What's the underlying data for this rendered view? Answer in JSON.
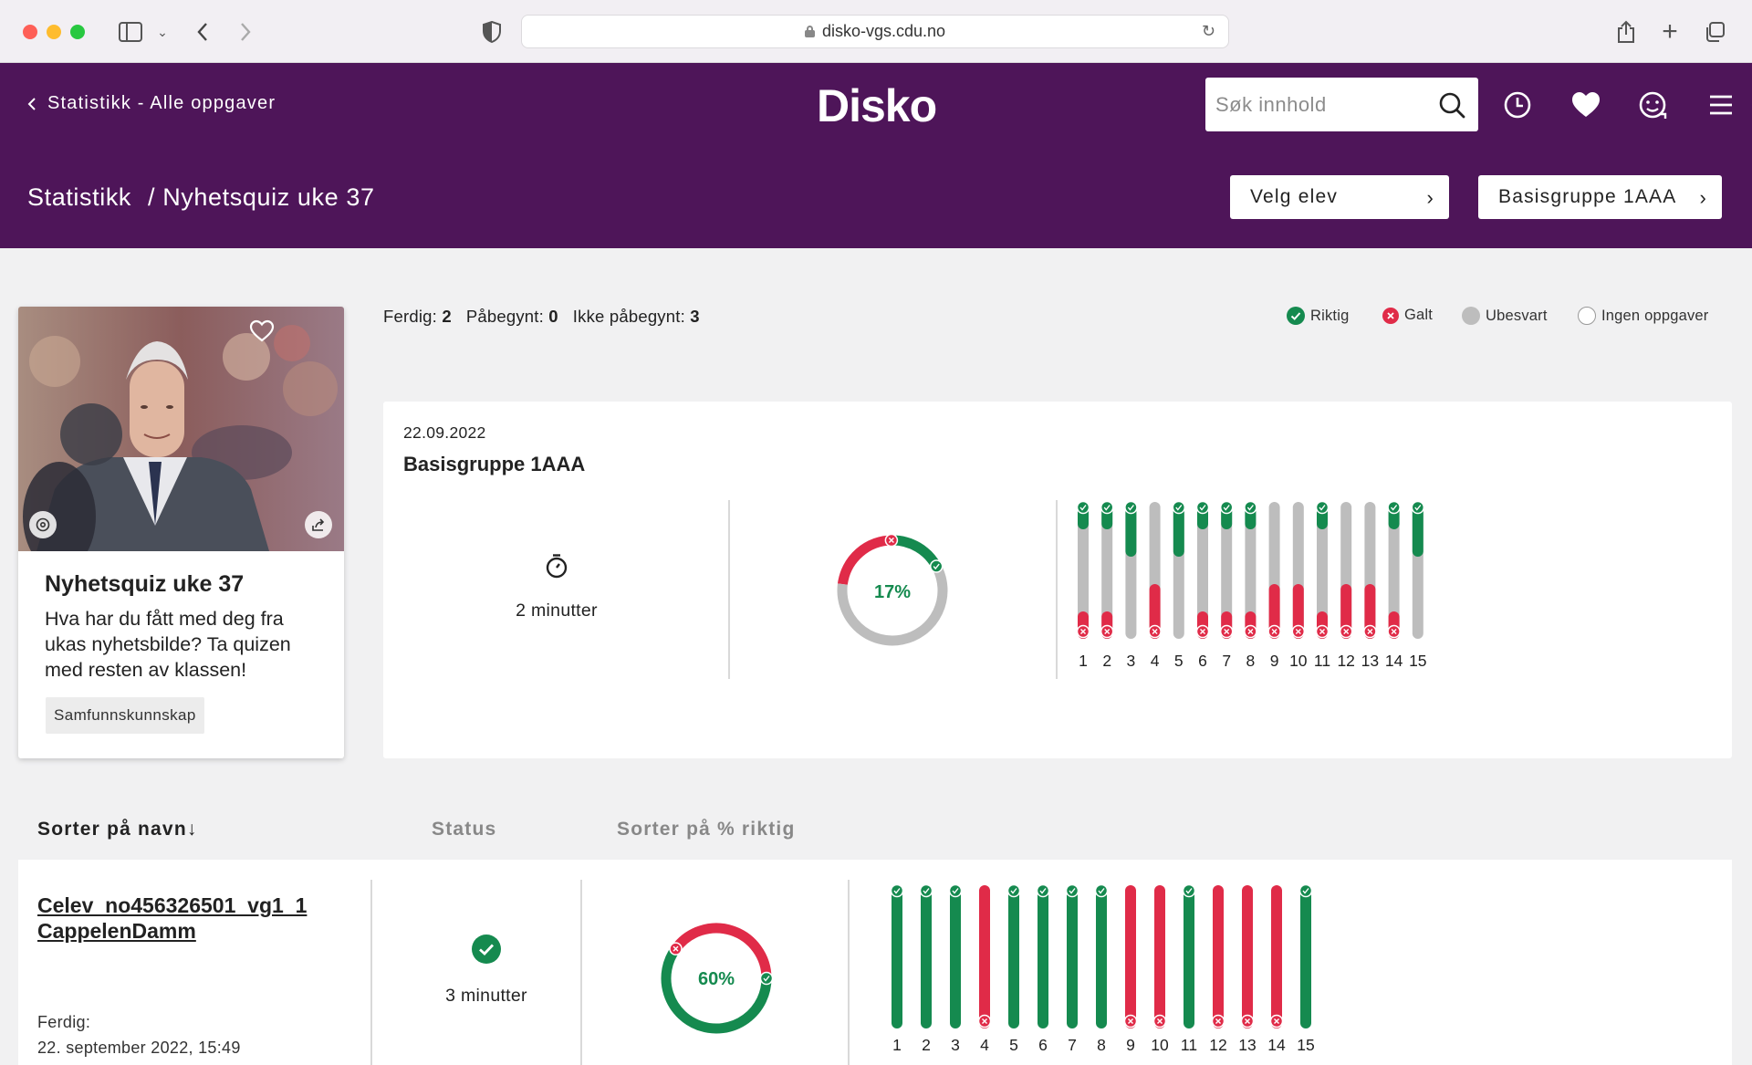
{
  "browser": {
    "url": "disko-vgs.cdu.no"
  },
  "header": {
    "back_label": "Statistikk - Alle oppgaver",
    "logo": "Disko",
    "search_placeholder": "Søk innhold"
  },
  "subheader": {
    "crumb_root": "Statistikk",
    "crumb_current": "/ Nyhetsquiz uke 37",
    "student_button": "Velg elev",
    "group_button": "Basisgruppe 1AAA"
  },
  "card": {
    "title": "Nyhetsquiz uke 37",
    "description": "Hva har du fått med deg fra ukas nyhetsbilde? Ta quizen med resten av klassen!",
    "tag": "Samfunnskunnskap"
  },
  "summary": {
    "done_label": "Ferdig:",
    "done_value": "2",
    "started_label": "Påbegynt:",
    "started_value": "0",
    "not_started_label": "Ikke påbegynt:",
    "not_started_value": "3"
  },
  "legend": {
    "correct": "Riktig",
    "wrong": "Galt",
    "unanswered": "Ubesvart",
    "none": "Ingen oppgaver"
  },
  "colors": {
    "brand": "#4e1559",
    "correct": "#158a4f",
    "wrong": "#e02b48",
    "unanswered": "#bdbdbd"
  },
  "group_panel": {
    "date": "22.09.2022",
    "group": "Basisgruppe 1AAA",
    "time": "2 minutter",
    "percent_label": "17%",
    "percent": {
      "correct": 17,
      "wrong": 23
    },
    "tasks": [
      {
        "n": "1",
        "correct": 0.2,
        "wrong": 0.2
      },
      {
        "n": "2",
        "correct": 0.2,
        "wrong": 0.2
      },
      {
        "n": "3",
        "correct": 0.4,
        "wrong": 0
      },
      {
        "n": "4",
        "correct": 0,
        "wrong": 0.4
      },
      {
        "n": "5",
        "correct": 0.4,
        "wrong": 0
      },
      {
        "n": "6",
        "correct": 0.2,
        "wrong": 0.2
      },
      {
        "n": "7",
        "correct": 0.2,
        "wrong": 0.2
      },
      {
        "n": "8",
        "correct": 0.2,
        "wrong": 0.2
      },
      {
        "n": "9",
        "correct": 0,
        "wrong": 0.4
      },
      {
        "n": "10",
        "correct": 0,
        "wrong": 0.4
      },
      {
        "n": "11",
        "correct": 0.2,
        "wrong": 0.2
      },
      {
        "n": "12",
        "correct": 0,
        "wrong": 0.4
      },
      {
        "n": "13",
        "correct": 0,
        "wrong": 0.4
      },
      {
        "n": "14",
        "correct": 0.2,
        "wrong": 0.2
      },
      {
        "n": "15",
        "correct": 0.4,
        "wrong": 0
      }
    ]
  },
  "table": {
    "sort_name": "Sorter på navn",
    "status": "Status",
    "sort_percent": "Sorter på % riktig",
    "rows": [
      {
        "name": "Celev_no456326501_vg1_1 CappelenDamm",
        "finished_label": "Ferdig:",
        "finished_date": "22. september 2022, 15:49",
        "time": "3 minutter",
        "percent_label": "60%",
        "percent": 60,
        "answers": [
          "correct",
          "correct",
          "correct",
          "wrong",
          "correct",
          "correct",
          "correct",
          "correct",
          "wrong",
          "wrong",
          "correct",
          "wrong",
          "wrong",
          "wrong",
          "correct"
        ],
        "task_numbers": [
          "1",
          "2",
          "3",
          "4",
          "5",
          "6",
          "7",
          "8",
          "9",
          "10",
          "11",
          "12",
          "13",
          "14",
          "15"
        ]
      }
    ]
  }
}
